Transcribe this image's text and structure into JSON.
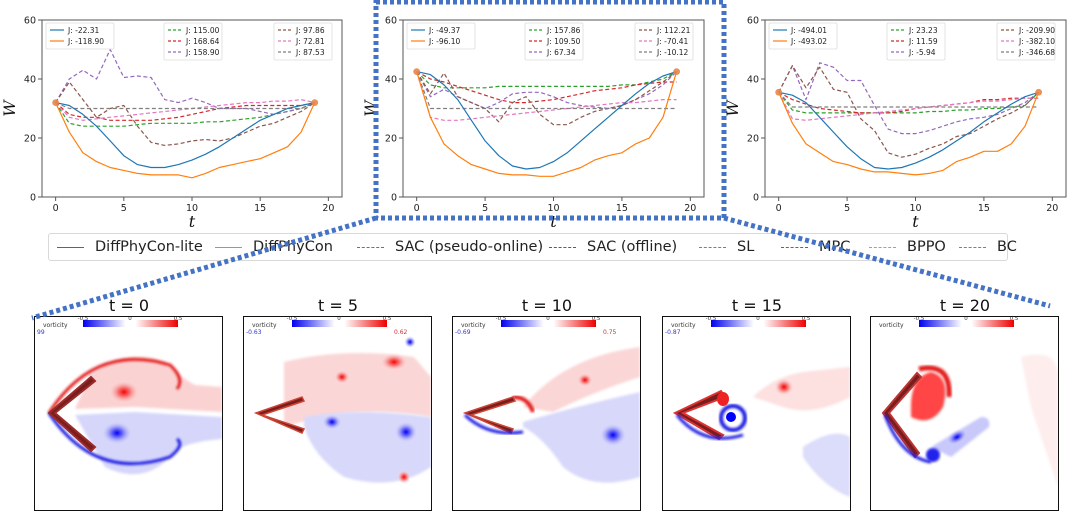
{
  "figure": {
    "legend": [
      {
        "label": "DiffPhyCon-lite",
        "color": "#1f77b4",
        "style": "solid"
      },
      {
        "label": "DiffPhyCon",
        "color": "#ff7f0e",
        "style": "solid"
      },
      {
        "label": "SAC (pseudo-online)",
        "color": "#2ca02c",
        "style": "dashed"
      },
      {
        "label": "SAC (offline)",
        "color": "#d62728",
        "style": "dashed"
      },
      {
        "label": "SL",
        "color": "#9467bd",
        "style": "dashed"
      },
      {
        "label": "MPC",
        "color": "#8c564b",
        "style": "dashed"
      },
      {
        "label": "BPPO",
        "color": "#e377c2",
        "style": "dashed"
      },
      {
        "label": "BC",
        "color": "#7f7f7f",
        "style": "dashed"
      }
    ],
    "highlight_color": "#4472c4",
    "snapshots": [
      {
        "title": "t = 0",
        "colorbar_label": "vorticity",
        "ticks": [
          "-0.5",
          "0",
          "0.5"
        ],
        "min_label": "99",
        "max_label": ""
      },
      {
        "title": "t = 5",
        "colorbar_label": "vorticity",
        "ticks": [
          "-0.5",
          "0",
          "0.5"
        ],
        "min_label": "-0.63",
        "max_label": "0.62"
      },
      {
        "title": "t = 10",
        "colorbar_label": "vorticity",
        "ticks": [
          "-0.5",
          "0",
          "0.5"
        ],
        "min_label": "-0.69",
        "max_label": "0.75"
      },
      {
        "title": "t = 15",
        "colorbar_label": "vorticity",
        "ticks": [
          "-0.5",
          "0",
          "0.5"
        ],
        "min_label": "-0.87",
        "max_label": ""
      },
      {
        "title": "t = 20",
        "colorbar_label": "vorticity",
        "ticks": [
          "-0.5",
          "0",
          "0.5"
        ],
        "min_label": "",
        "max_label": ""
      }
    ]
  },
  "chart_data": [
    {
      "type": "line",
      "title": "",
      "xlabel": "t",
      "ylabel": "W",
      "xlim": [
        -1,
        21
      ],
      "ylim": [
        0,
        60
      ],
      "xticks": [
        0,
        5,
        10,
        15,
        20
      ],
      "yticks": [
        0,
        20,
        40,
        60
      ],
      "grid": false,
      "x": [
        0,
        1,
        2,
        3,
        4,
        5,
        6,
        7,
        8,
        9,
        10,
        11,
        12,
        13,
        14,
        15,
        16,
        17,
        18,
        19
      ],
      "endpoints": [
        32,
        32
      ],
      "series": [
        {
          "name": "DiffPhyCon-lite",
          "J": "-22.31",
          "values": [
            32,
            31,
            28,
            24,
            19,
            14,
            11,
            10,
            10,
            11,
            12.5,
            14.5,
            17,
            20,
            23,
            26,
            28,
            30,
            31,
            32
          ]
        },
        {
          "name": "DiffPhyCon",
          "J": "-118.90",
          "values": [
            32,
            22,
            15,
            12,
            10,
            9,
            8,
            7.5,
            7.5,
            7.5,
            6.5,
            8,
            10,
            11,
            12,
            13,
            15,
            17,
            22,
            32
          ]
        },
        {
          "name": "SAC (pseudo-online)",
          "J": "115.00",
          "values": [
            32,
            25,
            24,
            24,
            24,
            24,
            24.5,
            25,
            25,
            25,
            25,
            25.5,
            25.5,
            26,
            26.5,
            27,
            28,
            29,
            30,
            32
          ]
        },
        {
          "name": "SAC (offline)",
          "J": "168.64",
          "values": [
            32,
            28,
            27,
            27,
            26,
            26,
            26,
            26,
            26.5,
            27,
            28,
            29,
            30,
            30.5,
            31,
            31,
            31,
            31,
            31,
            32
          ]
        },
        {
          "name": "SL",
          "J": "158.90",
          "values": [
            32,
            40,
            43,
            40,
            50,
            40.5,
            41,
            40.5,
            33,
            32,
            33.5,
            32,
            30,
            30,
            30,
            29,
            28,
            29,
            30,
            32
          ]
        },
        {
          "name": "MPC",
          "J": "97.86",
          "values": [
            32,
            39,
            33,
            27,
            30,
            31,
            24,
            18.5,
            17.5,
            18,
            19,
            19.5,
            19,
            20,
            22,
            24,
            25,
            27,
            29,
            32
          ]
        },
        {
          "name": "BPPO",
          "J": "72.81",
          "values": [
            32,
            27,
            26,
            26.5,
            27,
            27.5,
            28,
            28.5,
            29,
            29.5,
            30,
            30.5,
            31,
            31.5,
            32,
            32,
            32.5,
            32.5,
            33,
            32
          ]
        },
        {
          "name": "BC",
          "J": "87.53",
          "values": [
            32,
            30,
            30,
            30,
            30,
            30,
            30,
            30,
            30,
            30,
            30,
            30,
            30,
            30,
            30,
            30,
            30,
            30,
            30,
            32
          ]
        }
      ]
    },
    {
      "type": "line",
      "title": "",
      "xlabel": "t",
      "ylabel": "W",
      "xlim": [
        -1,
        21
      ],
      "ylim": [
        0,
        60
      ],
      "xticks": [
        0,
        5,
        10,
        15,
        20
      ],
      "yticks": [
        0,
        20,
        40,
        60
      ],
      "grid": false,
      "x": [
        0,
        1,
        2,
        3,
        4,
        5,
        6,
        7,
        8,
        9,
        10,
        11,
        12,
        13,
        14,
        15,
        16,
        17,
        18,
        19
      ],
      "endpoints": [
        42.5,
        42.5
      ],
      "series": [
        {
          "name": "DiffPhyCon-lite",
          "J": "-49.37",
          "values": [
            42.5,
            41.5,
            38,
            33,
            26,
            19,
            14,
            10.5,
            9.5,
            10,
            12,
            15,
            19,
            23,
            27,
            31,
            35,
            38.5,
            41,
            42.5
          ]
        },
        {
          "name": "DiffPhyCon",
          "J": "-96.10",
          "values": [
            42.5,
            27,
            18,
            14,
            11,
            9.5,
            8,
            7.5,
            7.5,
            7,
            7,
            8.5,
            10,
            12.5,
            14,
            15,
            18,
            20,
            27,
            42.5
          ]
        },
        {
          "name": "SAC (pseudo-online)",
          "J": "157.86",
          "values": [
            42.5,
            38,
            37,
            37,
            37,
            37,
            37.5,
            37.5,
            37.5,
            37.5,
            37.5,
            37.5,
            37.5,
            37.5,
            37.5,
            38,
            38,
            39,
            40,
            42.5
          ]
        },
        {
          "name": "SAC (offline)",
          "J": "109.50",
          "values": [
            42.5,
            40,
            39,
            37.5,
            36,
            34.5,
            33,
            32,
            32,
            32.5,
            33,
            34,
            35,
            36,
            36.5,
            37,
            38,
            38.5,
            39,
            39
          ]
        },
        {
          "name": "SL",
          "J": "67.34",
          "values": [
            42.5,
            34,
            36.5,
            34,
            32,
            30,
            32,
            35,
            35.5,
            35.5,
            34,
            32,
            31,
            30.5,
            30,
            31,
            33,
            35,
            38,
            42.5
          ]
        },
        {
          "name": "MPC",
          "J": "112.21",
          "values": [
            42.5,
            35,
            42,
            34,
            32,
            30,
            25.5,
            32,
            34,
            28,
            24.5,
            24.5,
            27,
            29,
            30,
            31,
            33,
            36,
            39,
            42.5
          ]
        },
        {
          "name": "BPPO",
          "J": "-70.41",
          "values": [
            42.5,
            27,
            26,
            26,
            26.5,
            27,
            27.5,
            28,
            28.5,
            29,
            29.5,
            30,
            30.5,
            31,
            31.5,
            32,
            32,
            32.5,
            33,
            33
          ]
        },
        {
          "name": "BC",
          "J": "-10.12",
          "values": [
            42.5,
            30,
            30,
            30,
            30,
            30,
            30,
            30,
            30,
            30,
            30,
            30,
            30,
            30,
            30,
            30,
            30,
            30,
            30,
            30
          ]
        }
      ]
    },
    {
      "type": "line",
      "title": "",
      "xlabel": "t",
      "ylabel": "W",
      "xlim": [
        -1,
        21
      ],
      "ylim": [
        0,
        60
      ],
      "xticks": [
        0,
        5,
        10,
        15,
        20
      ],
      "yticks": [
        0,
        20,
        40,
        60
      ],
      "grid": false,
      "x": [
        0,
        1,
        2,
        3,
        4,
        5,
        6,
        7,
        8,
        9,
        10,
        11,
        12,
        13,
        14,
        15,
        16,
        17,
        18,
        19
      ],
      "endpoints": [
        35.5,
        35.5
      ],
      "series": [
        {
          "name": "DiffPhyCon-lite",
          "J": "-494.01",
          "values": [
            35.5,
            34.5,
            32,
            27,
            22,
            17,
            13,
            10,
            9.5,
            10,
            11.5,
            13.5,
            16,
            19,
            22,
            25.5,
            28.5,
            31.5,
            34,
            35.5
          ]
        },
        {
          "name": "DiffPhyCon",
          "J": "-493.02",
          "values": [
            35.5,
            25,
            18,
            15,
            12,
            11,
            9.5,
            8.5,
            8.5,
            8,
            7.5,
            8,
            9,
            12,
            13.5,
            15.5,
            15.5,
            18,
            24,
            35.5
          ]
        },
        {
          "name": "SAC (pseudo-online)",
          "J": "23.23",
          "values": [
            35.5,
            29.5,
            28.5,
            28.5,
            28.5,
            28.5,
            28.5,
            28.5,
            28.5,
            28.5,
            28.5,
            29,
            29,
            29.5,
            29.5,
            30,
            30,
            30.5,
            31,
            35.5
          ]
        },
        {
          "name": "SAC (offline)",
          "J": "11.59",
          "values": [
            35.5,
            33,
            31.5,
            30,
            29.5,
            29,
            28.5,
            28.5,
            28.5,
            29,
            30,
            30.5,
            31,
            31.5,
            32,
            33,
            33,
            33.5,
            33.5,
            33.5
          ]
        },
        {
          "name": "SL",
          "J": "-5.94",
          "values": [
            35.5,
            44.5,
            33,
            45.5,
            44,
            39.5,
            39.5,
            31,
            23,
            21.5,
            21.5,
            22.5,
            24,
            25.5,
            26.5,
            27,
            28,
            30,
            32,
            35.5
          ]
        },
        {
          "name": "MPC",
          "J": "-209.90",
          "values": [
            35.5,
            44.5,
            37,
            44,
            36.5,
            35.5,
            26.5,
            22.5,
            15,
            13.5,
            14.5,
            16.5,
            18,
            20.5,
            21.5,
            24,
            26.5,
            28.5,
            31,
            35.5
          ]
        },
        {
          "name": "BPPO",
          "J": "-382.10",
          "values": [
            35.5,
            26.5,
            26,
            26.5,
            27,
            27.5,
            28,
            28.5,
            29,
            29.5,
            30,
            30.5,
            31,
            31.5,
            32,
            32.5,
            32.5,
            33,
            33.5,
            33.5
          ]
        },
        {
          "name": "BC",
          "J": "-346.68",
          "values": [
            35.5,
            30.5,
            30.5,
            30.5,
            30.5,
            30.5,
            30.5,
            30.5,
            30.5,
            30.5,
            30.5,
            30.5,
            30.5,
            30.5,
            30.5,
            30.5,
            30.5,
            30.5,
            30.5,
            30.5
          ]
        }
      ]
    }
  ]
}
